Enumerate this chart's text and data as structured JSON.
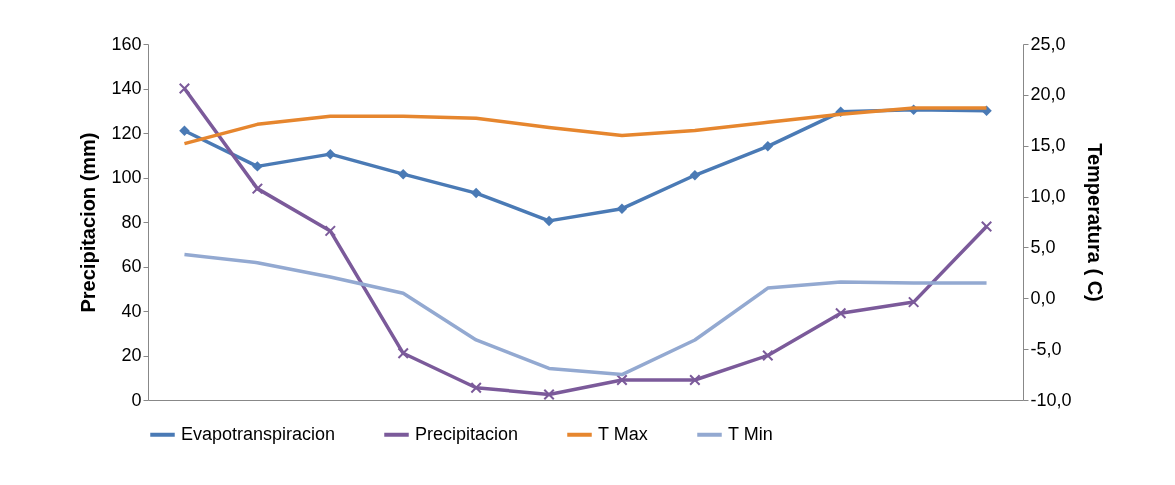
{
  "chart_data": {
    "type": "line",
    "ylabel": "Precipitacion (mm)",
    "y2label": "Temperatura ( C)",
    "categories": [
      null,
      null,
      null,
      null,
      null,
      null,
      null,
      null,
      null,
      null,
      null,
      null
    ],
    "ylim": [
      0,
      160
    ],
    "yticks": [
      0,
      20,
      40,
      60,
      80,
      100,
      120,
      140,
      160
    ],
    "y2lim": [
      -10,
      25
    ],
    "y2ticks": [
      {
        "value": -10,
        "label": "-10,0"
      },
      {
        "value": -5,
        "label": "-5,0"
      },
      {
        "value": 0,
        "label": "0,0"
      },
      {
        "value": 5,
        "label": "5,0"
      },
      {
        "value": 10,
        "label": "10,0"
      },
      {
        "value": 15,
        "label": "15,0"
      },
      {
        "value": 20,
        "label": "20,0"
      },
      {
        "value": 25,
        "label": "25,0"
      }
    ],
    "grid": false,
    "legend": "bottom",
    "line_style": "solid",
    "series": [
      {
        "name": "Evapotranspiracion",
        "color": "#4a7ab5",
        "marker": "diamond",
        "values": [
          121,
          105,
          110.5,
          101.5,
          93,
          80.5,
          86,
          101,
          114,
          129.5,
          130.5,
          130
        ]
      },
      {
        "name": "Precipitacion",
        "color": "#7b5a9a",
        "marker": "cross",
        "values": [
          140,
          95,
          76,
          21,
          5.5,
          2.5,
          9,
          9,
          20,
          39,
          44,
          78
        ]
      },
      {
        "name": "T Max",
        "color": "#e6862e",
        "marker": "none",
        "axis": "y2",
        "values": [
          15.2,
          17.1,
          17.9,
          17.9,
          17.7,
          16.8,
          16.0,
          16.5,
          17.3,
          18.1,
          18.7,
          18.7
        ]
      },
      {
        "name": "T Min",
        "color": "#93a9d1",
        "marker": "none",
        "axis": "y2",
        "values": [
          4.3,
          3.5,
          2.1,
          0.5,
          -4.1,
          -6.9,
          -7.5,
          -4.1,
          1.0,
          1.6,
          1.5,
          1.5
        ]
      }
    ]
  }
}
